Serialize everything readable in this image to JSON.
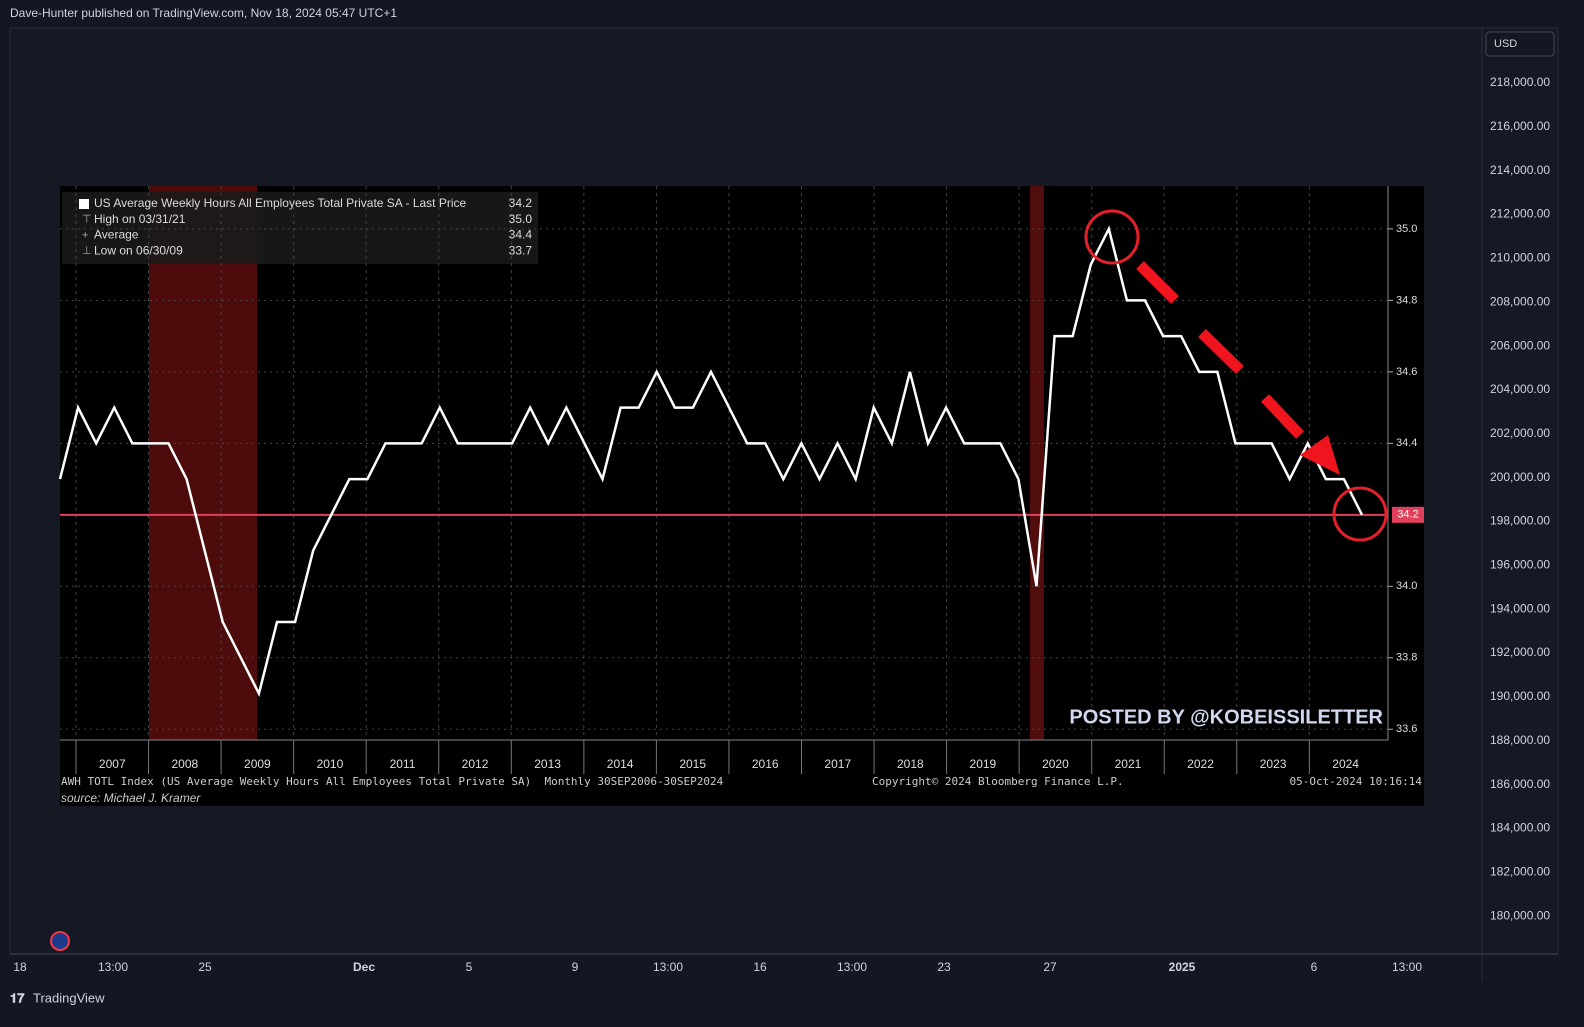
{
  "header": {
    "title": "Dave-Hunter published on TradingView.com, Nov 18, 2024 05:47 UTC+1"
  },
  "price_axis": {
    "currency": "USD",
    "labels": [
      "218,000.00",
      "216,000.00",
      "214,000.00",
      "212,000.00",
      "210,000.00",
      "208,000.00",
      "206,000.00",
      "204,000.00",
      "202,000.00",
      "200,000.00",
      "198,000.00",
      "196,000.00",
      "194,000.00",
      "192,000.00",
      "190,000.00",
      "188,000.00",
      "186,000.00",
      "184,000.00",
      "182,000.00",
      "180,000.00"
    ]
  },
  "time_axis": {
    "labels": [
      "18",
      "13:00",
      "25",
      "Dec",
      "5",
      "9",
      "13:00",
      "16",
      "13:00",
      "23",
      "27",
      "2025",
      "6",
      "13:00"
    ]
  },
  "footer": {
    "brand": "TradingView"
  },
  "chart_data": {
    "type": "line",
    "legend": [
      {
        "label": "US Average Weekly Hours All Employees Total Private SA - Last Price",
        "value": "34.2"
      },
      {
        "label": "High on 03/31/21",
        "value": "35.0"
      },
      {
        "label": "Average",
        "value": "34.4"
      },
      {
        "label": "Low on 06/30/09",
        "value": "33.7"
      }
    ],
    "color": "#ffffff",
    "values": [
      34.3,
      34.5,
      34.4,
      34.5,
      34.4,
      34.4,
      34.4,
      34.3,
      34.1,
      33.9,
      33.8,
      33.7,
      33.9,
      33.9,
      34.1,
      34.2,
      34.3,
      34.3,
      34.4,
      34.4,
      34.4,
      34.5,
      34.4,
      34.4,
      34.4,
      34.4,
      34.5,
      34.4,
      34.5,
      34.4,
      34.3,
      34.5,
      34.5,
      34.6,
      34.5,
      34.5,
      34.6,
      34.5,
      34.4,
      34.4,
      34.3,
      34.4,
      34.3,
      34.4,
      34.3,
      34.5,
      34.4,
      34.6,
      34.4,
      34.5,
      34.4,
      34.4,
      34.4,
      34.3,
      34.0,
      34.7,
      34.7,
      34.9,
      35.0,
      34.8,
      34.8,
      34.7,
      34.7,
      34.6,
      34.6,
      34.4,
      34.4,
      34.4,
      34.3,
      34.4,
      34.3,
      34.3,
      34.2
    ],
    "xticks": [
      2007,
      2008,
      2009,
      2010,
      2011,
      2012,
      2013,
      2014,
      2015,
      2016,
      2017,
      2018,
      2019,
      2020,
      2021,
      2022,
      2023,
      2024
    ],
    "ylim": [
      33.57,
      35.12
    ],
    "yticks": [
      {
        "value": 35,
        "label": "35.0"
      },
      {
        "value": 34.8,
        "label": "34.8"
      },
      {
        "value": 34.6,
        "label": "34.6"
      },
      {
        "value": 34.4,
        "label": "34.4"
      },
      {
        "value": 34,
        "label": "34.0"
      },
      {
        "value": 33.8,
        "label": "33.8"
      },
      {
        "value": 33.6,
        "label": "33.6"
      }
    ],
    "last_price": 34.2,
    "grid": true,
    "watermark": "POSTED BY @KOBEISSILETTER",
    "footnote": "AWH TOTL Index (US Average Weekly Hours All Employees Total Private SA)  Monthly 30SEP2006-30SEP2024",
    "copyright": "Copyright© 2024 Bloomberg Finance L.P.",
    "timestamp": "05-Oct-2024 10:16:14",
    "source": "source: Michael J. Kramer"
  }
}
